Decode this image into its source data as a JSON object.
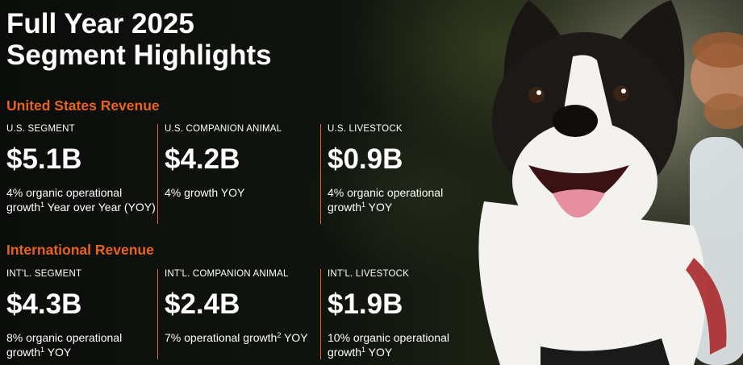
{
  "title": {
    "line1": "Full Year 2025",
    "line2": "Segment Highlights"
  },
  "us": {
    "heading": "United States Revenue",
    "columns": [
      {
        "label": "U.S. SEGMENT",
        "value": "$5.1B",
        "desc_pre": "4% organic operational growth",
        "sup": "1",
        "desc_post": " Year over Year (YOY)"
      },
      {
        "label": "U.S. COMPANION ANIMAL",
        "value": "$4.2B",
        "desc_pre": "4% growth YOY",
        "sup": "",
        "desc_post": ""
      },
      {
        "label": "U.S. LIVESTOCK",
        "value": "$0.9B",
        "desc_pre": "4% organic operational growth",
        "sup": "1",
        "desc_post": " YOY"
      }
    ]
  },
  "intl": {
    "heading": "International Revenue",
    "columns": [
      {
        "label": "INT'L. SEGMENT",
        "value": "$4.3B",
        "desc_pre": "8% organic operational growth",
        "sup": "1",
        "desc_post": " YOY"
      },
      {
        "label": "INT'L. COMPANION ANIMAL",
        "value": "$2.4B",
        "desc_pre": "7% operational growth",
        "sup": "2",
        "desc_post": " YOY"
      },
      {
        "label": "INT'L. LIVESTOCK",
        "value": "$1.9B",
        "desc_pre": "10% organic operational growth",
        "sup": "1",
        "desc_post": " YOY"
      }
    ]
  },
  "colors": {
    "accent": "#e8641e",
    "text": "#ffffff",
    "background": "#0d100c"
  }
}
